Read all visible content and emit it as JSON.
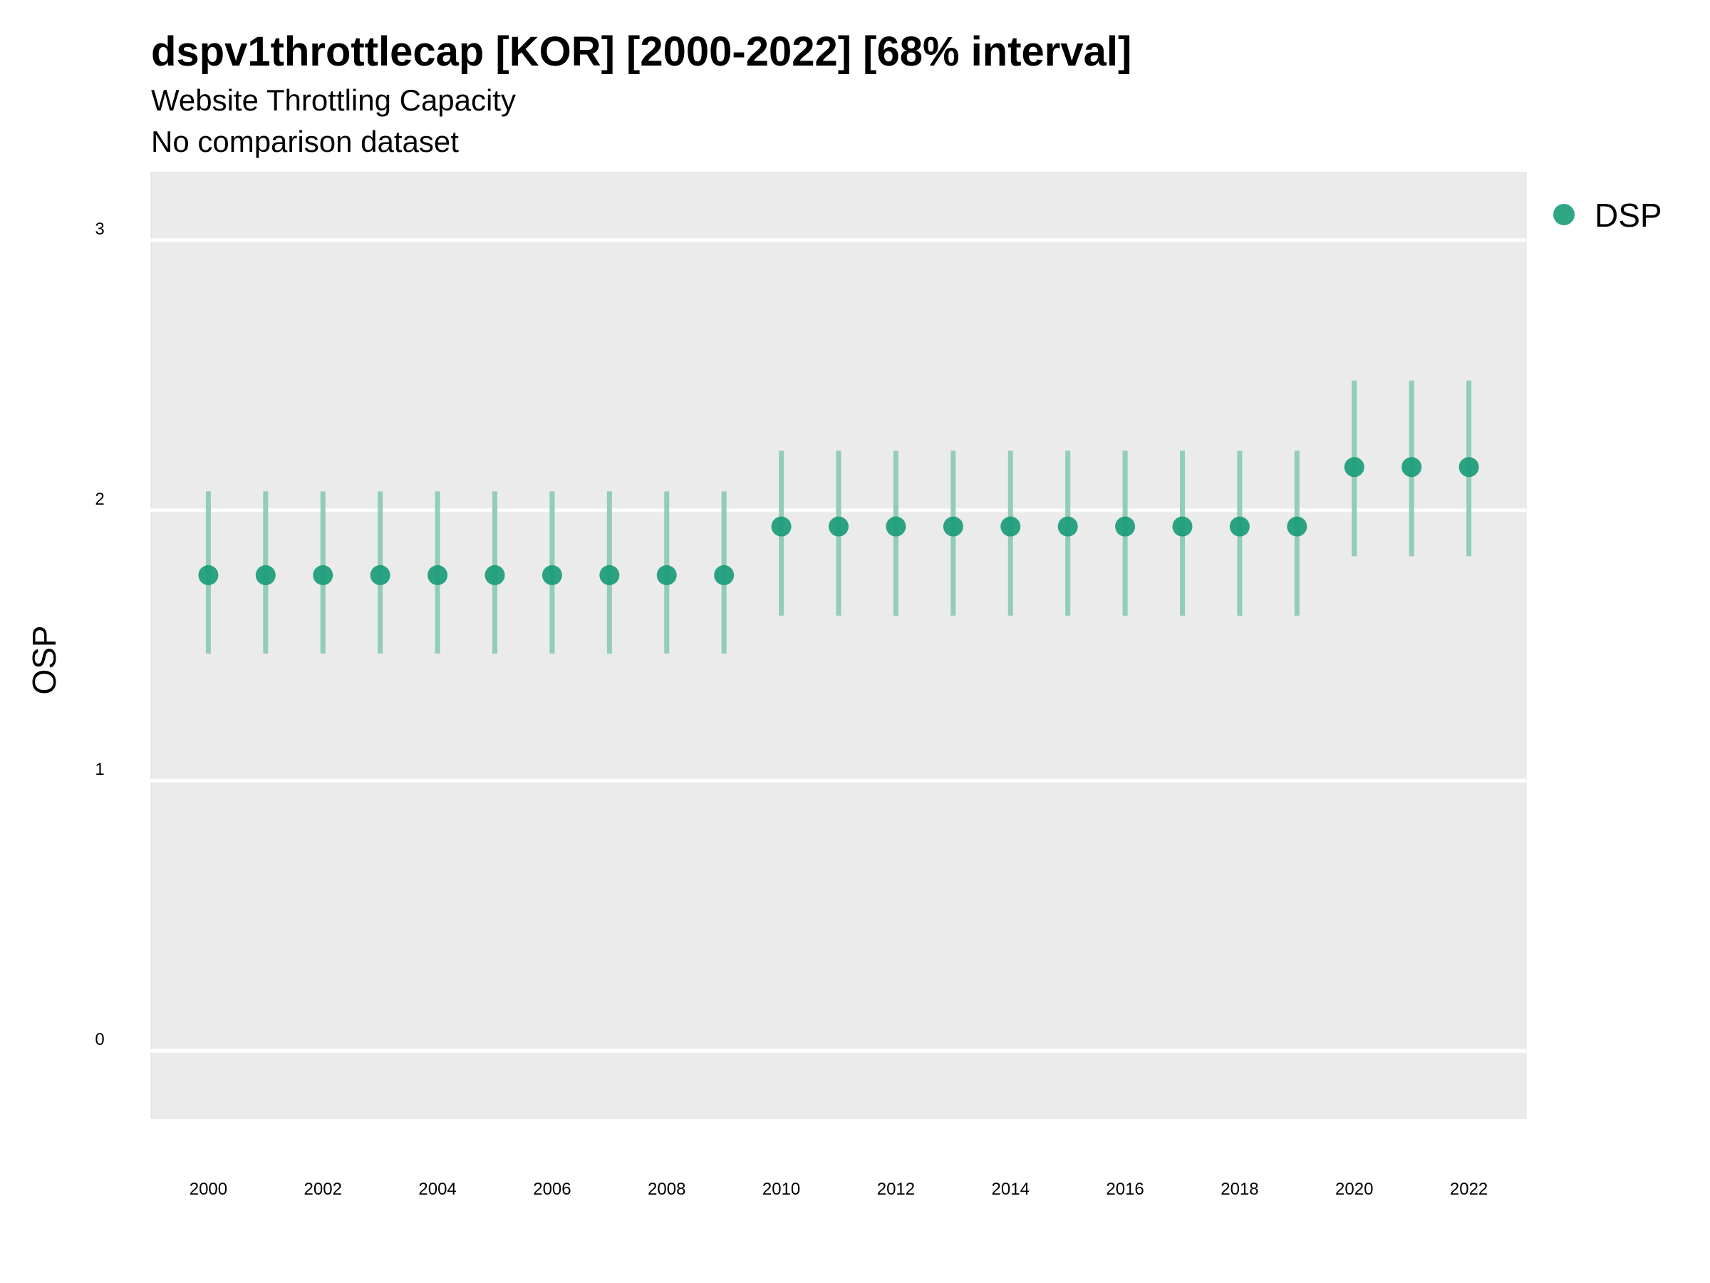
{
  "chart_data": {
    "type": "scatter",
    "title": "dspv1throttlecap [KOR] [2000-2022] [68% interval]",
    "subtitle": "Website Throttling Capacity",
    "subtitle2": "No comparison dataset",
    "xlabel": "",
    "ylabel": "OSP",
    "xlim": [
      1999,
      2023
    ],
    "ylim": [
      -0.25,
      3.25
    ],
    "x_ticks": [
      2000,
      2002,
      2004,
      2006,
      2008,
      2010,
      2012,
      2014,
      2016,
      2018,
      2020,
      2022
    ],
    "y_ticks": [
      0,
      1,
      2,
      3
    ],
    "grid": true,
    "legend_position": "right",
    "colors": {
      "point": "#1a9c78",
      "interval": "#8ccbb4",
      "panel": "#ebebeb",
      "grid": "#ffffff"
    },
    "series": [
      {
        "name": "DSP",
        "x": [
          2000,
          2001,
          2002,
          2003,
          2004,
          2005,
          2006,
          2007,
          2008,
          2009,
          2010,
          2011,
          2012,
          2013,
          2014,
          2015,
          2016,
          2017,
          2018,
          2019,
          2020,
          2021,
          2022
        ],
        "y": [
          1.76,
          1.76,
          1.76,
          1.76,
          1.76,
          1.76,
          1.76,
          1.76,
          1.76,
          1.76,
          1.94,
          1.94,
          1.94,
          1.94,
          1.94,
          1.94,
          1.94,
          1.94,
          1.94,
          1.94,
          2.16,
          2.16,
          2.16
        ],
        "lower": [
          1.47,
          1.47,
          1.47,
          1.47,
          1.47,
          1.47,
          1.47,
          1.47,
          1.47,
          1.47,
          1.61,
          1.61,
          1.61,
          1.61,
          1.61,
          1.61,
          1.61,
          1.61,
          1.61,
          1.61,
          1.83,
          1.83,
          1.83
        ],
        "upper": [
          2.07,
          2.07,
          2.07,
          2.07,
          2.07,
          2.07,
          2.07,
          2.07,
          2.07,
          2.07,
          2.22,
          2.22,
          2.22,
          2.22,
          2.22,
          2.22,
          2.22,
          2.22,
          2.22,
          2.22,
          2.48,
          2.48,
          2.48
        ]
      }
    ]
  }
}
